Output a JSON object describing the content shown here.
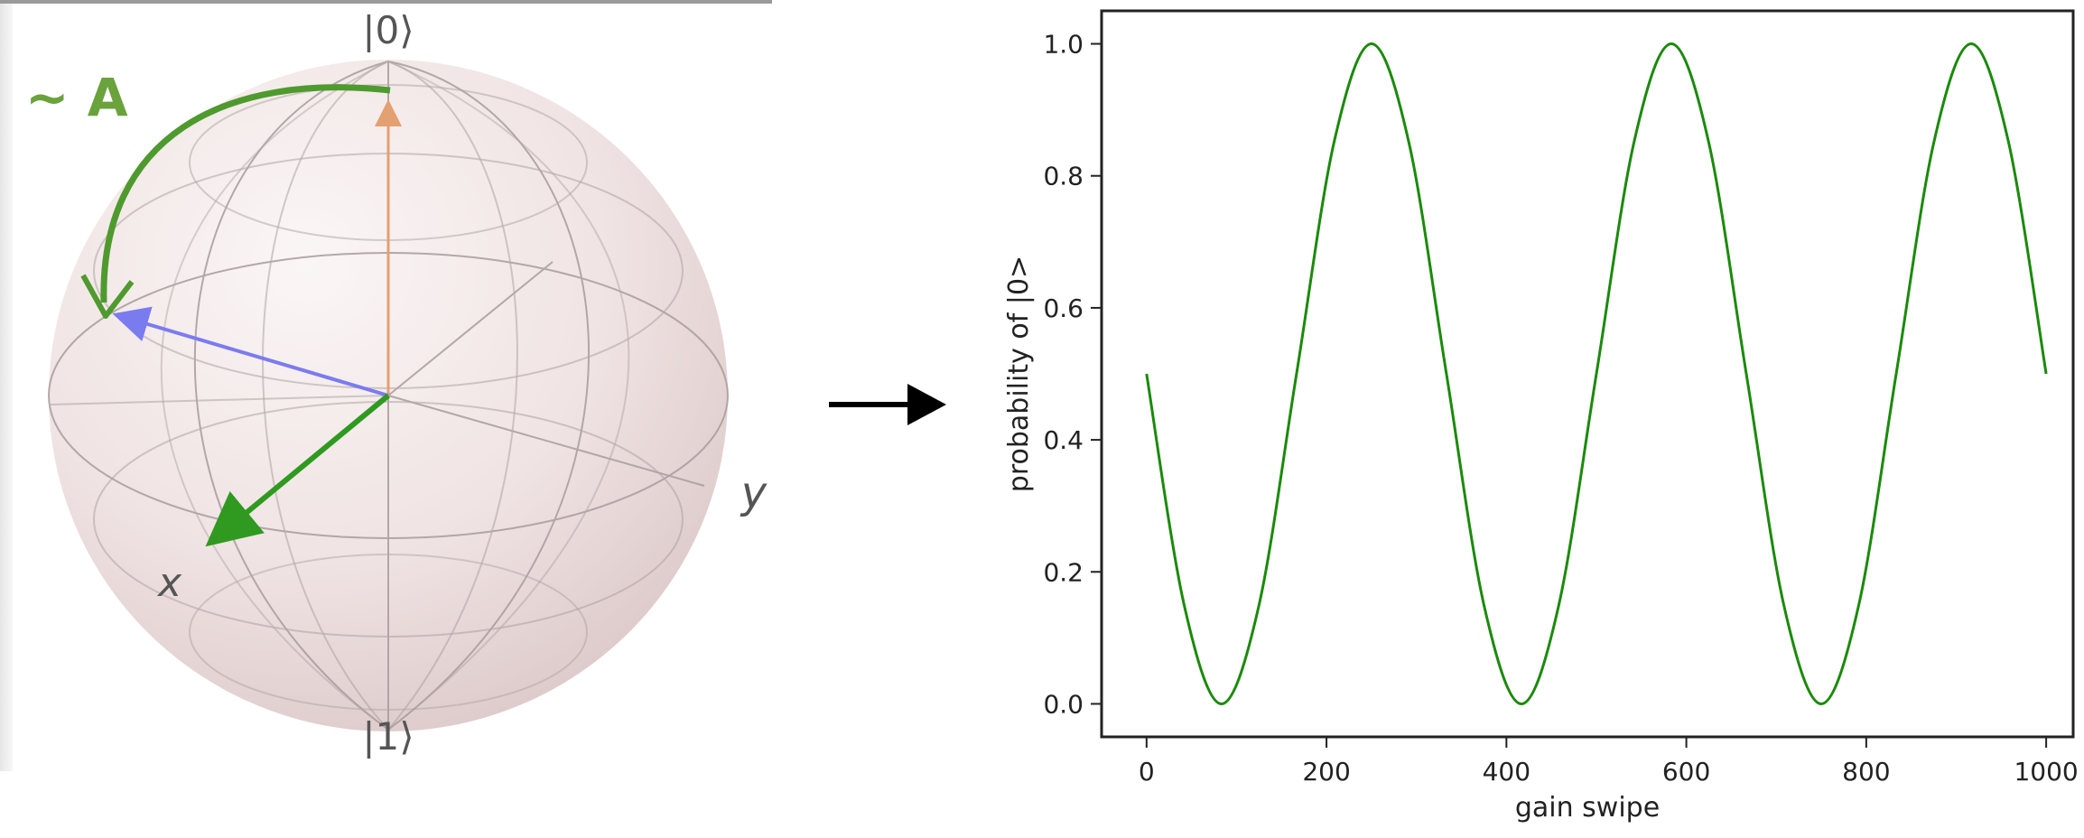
{
  "bloch": {
    "label_top": "|0⟩",
    "label_bottom": "|1⟩",
    "label_x": "x",
    "label_y": "y",
    "rotation_label": "~ A",
    "colors": {
      "rotation": "#4f9a2e",
      "label_green": "#6aa23c",
      "state_z": "#e3a070",
      "state_blue": "#7b7bf0",
      "state_x": "#2f9a1f",
      "sphere": "#f1e4e4",
      "grid": "#a89c9c"
    }
  },
  "chart_data": {
    "type": "line",
    "title": "",
    "xlabel": "gain swipe",
    "ylabel": "probability of |0>",
    "xlim": [
      -50,
      1030
    ],
    "ylim": [
      -0.05,
      1.05
    ],
    "xticks": [
      0,
      200,
      400,
      600,
      800,
      1000
    ],
    "yticks": [
      0.0,
      0.2,
      0.4,
      0.6,
      0.8,
      1.0
    ],
    "xtick_labels": [
      "0",
      "200",
      "400",
      "600",
      "800",
      "1000"
    ],
    "ytick_labels": [
      "0.0",
      "0.2",
      "0.4",
      "0.6",
      "0.8",
      "1.0"
    ],
    "grid": false,
    "series": [
      {
        "color": "#1a8a0a",
        "x": [
          0,
          41.7,
          83.3,
          125,
          166.7,
          208.3,
          250,
          291.7,
          333.3,
          375,
          416.7,
          458.3,
          500,
          541.7,
          583.3,
          625,
          666.7,
          708.3,
          750,
          791.7,
          833.3,
          875,
          916.7,
          958.3,
          1000
        ],
        "y": [
          0.5,
          0.15,
          0.0,
          0.15,
          0.5,
          0.85,
          1.0,
          0.85,
          0.5,
          0.15,
          0.0,
          0.15,
          0.5,
          0.85,
          1.0,
          0.85,
          0.5,
          0.15,
          0.0,
          0.15,
          0.5,
          0.85,
          1.0,
          0.85,
          0.5
        ]
      }
    ]
  }
}
